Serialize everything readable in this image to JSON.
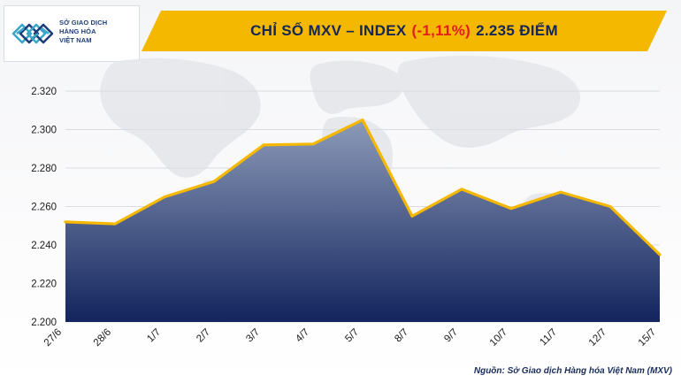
{
  "brand": {
    "name_lines": [
      "SỞ GIAO DỊCH",
      "HÀNG HÓA",
      "VIỆT NAM"
    ],
    "colors": {
      "navy": "#1e3d7a",
      "teal": "#3aa7c9"
    }
  },
  "header": {
    "title_main": "CHỈ SỐ MXV – INDEX",
    "title_change": "(-1,11%)",
    "title_value": "2.235 ĐIỂM",
    "banner_color": "#f5b800",
    "change_color": "#e31d1a"
  },
  "chart_data": {
    "type": "area",
    "categories": [
      "27/6",
      "28/6",
      "1/7",
      "2/7",
      "3/7",
      "4/7",
      "5/7",
      "8/7",
      "9/7",
      "10/7",
      "11/7",
      "12/7",
      "15/7"
    ],
    "values": [
      2252,
      2251,
      2265,
      2273,
      2292,
      2292.5,
      2305,
      2255,
      2269,
      2259,
      2267.5,
      2260,
      2235
    ],
    "ylim": [
      2200,
      2320
    ],
    "yticks": [
      2200,
      2220,
      2240,
      2260,
      2280,
      2300,
      2320
    ],
    "ytick_labels": [
      "2.200",
      "2.220",
      "2.240",
      "2.260",
      "2.280",
      "2.300",
      "2.320"
    ],
    "grid": true,
    "line_color": "#f5b800",
    "fill_top_color": "#8c9bb8",
    "fill_bottom_color": "#13245e"
  },
  "footer": {
    "source": "Nguồn: Sở Giao dịch Hàng hóa Việt Nam (MXV)"
  }
}
